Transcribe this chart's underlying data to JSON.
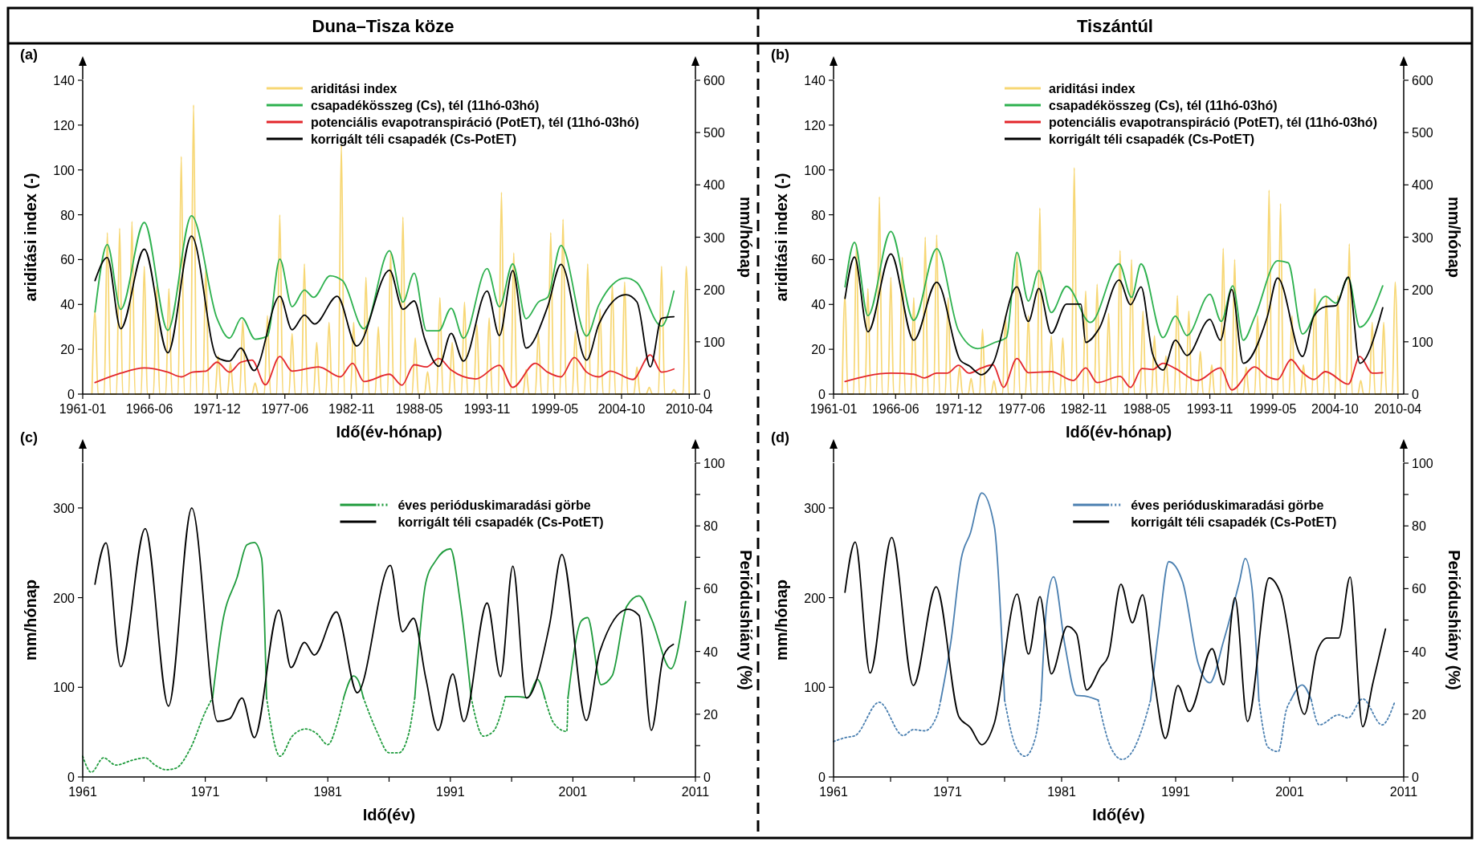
{
  "chart_data": [
    {
      "type": "line",
      "title": "Duna–Tisza köze",
      "annotations": [
        "(a)"
      ],
      "xlabel": "Idő(év-hónap)",
      "ylabel": "ariditási index (-)",
      "y2label": "mm/hónap",
      "legend": "top",
      "xlim": [
        "1961-01",
        "2010-10"
      ],
      "xticks": [
        "1961-01",
        "1966-06",
        "1971-12",
        "1977-06",
        "1982-11",
        "1988-05",
        "1993-11",
        "1999-05",
        "2004-10",
        "2010-04"
      ],
      "ylim": [
        0,
        140
      ],
      "yticks": [
        0,
        20,
        40,
        60,
        80,
        100,
        120,
        140
      ],
      "y2lim": [
        0,
        600
      ],
      "y2ticks": [
        0,
        100,
        200,
        300,
        400,
        500,
        600
      ],
      "series": [
        {
          "name": "ariditási index",
          "color": "#f7d774",
          "axis": "y",
          "x": [
            "1961-10",
            "1962-01",
            "1962-04",
            "1962-10",
            "1963-01",
            "1963-04",
            "1963-10",
            "1964-01",
            "1964-04",
            "1964-10",
            "1965-01",
            "1965-04",
            "1965-10",
            "1966-01",
            "1966-04",
            "1966-10",
            "1967-01",
            "1967-04",
            "1967-10",
            "1968-01",
            "1968-04",
            "1968-10",
            "1969-01",
            "1969-04",
            "1969-10",
            "1970-01",
            "1970-04",
            "1970-10",
            "1971-01",
            "1971-04",
            "1971-10",
            "1972-01",
            "1972-04",
            "1972-10",
            "1973-01",
            "1973-04",
            "1973-10",
            "1974-01",
            "1974-04",
            "1974-10",
            "1975-01",
            "1975-04",
            "1975-10",
            "1976-01",
            "1976-04",
            "1976-10",
            "1977-01",
            "1977-04",
            "1977-10",
            "1978-01",
            "1978-04",
            "1978-10",
            "1979-01",
            "1979-04",
            "1979-10",
            "1980-01",
            "1980-04",
            "1980-10",
            "1981-01",
            "1981-04",
            "1981-10",
            "1982-01",
            "1982-04",
            "1982-10",
            "1983-01",
            "1983-04",
            "1983-10",
            "1984-01",
            "1984-04",
            "1984-10",
            "1985-01",
            "1985-04",
            "1985-10",
            "1986-01",
            "1986-04",
            "1986-10",
            "1987-01",
            "1987-04",
            "1987-10",
            "1988-01",
            "1988-04",
            "1988-10",
            "1989-01",
            "1989-04",
            "1989-10",
            "1990-01",
            "1990-04",
            "1990-10",
            "1991-01",
            "1991-04",
            "1991-10",
            "1992-01",
            "1992-04",
            "1992-10",
            "1993-01",
            "1993-04",
            "1993-10",
            "1994-01",
            "1994-04",
            "1994-10",
            "1995-01",
            "1995-04",
            "1995-10",
            "1996-01",
            "1996-04",
            "1996-10",
            "1997-01",
            "1997-04",
            "1997-10",
            "1998-01",
            "1998-04",
            "1998-10",
            "1999-01",
            "1999-04",
            "1999-10",
            "2000-01",
            "2000-04",
            "2000-10",
            "2001-01",
            "2001-04",
            "2001-10",
            "2002-01",
            "2002-04",
            "2002-10",
            "2003-01",
            "2003-04",
            "2003-10",
            "2004-01",
            "2004-04",
            "2004-10",
            "2005-01",
            "2005-04",
            "2005-10",
            "2006-01",
            "2006-04",
            "2006-10",
            "2007-01",
            "2007-04",
            "2007-10",
            "2008-01",
            "2008-04",
            "2008-10",
            "2009-01",
            "2009-04",
            "2009-10",
            "2010-01",
            "2010-04"
          ],
          "values": [
            0,
            37,
            0,
            0,
            72,
            0,
            0,
            74,
            0,
            0,
            77,
            0,
            0,
            57,
            0,
            0,
            48,
            0,
            0,
            47,
            0,
            0,
            106,
            0,
            0,
            129,
            0,
            0,
            57,
            0,
            0,
            17,
            0,
            0,
            14,
            0,
            0,
            33,
            0,
            0,
            5,
            0,
            0,
            35,
            0,
            0,
            80,
            0,
            0,
            27,
            0,
            0,
            58,
            0,
            0,
            23,
            0,
            0,
            32,
            0,
            0,
            111,
            0,
            0,
            32,
            0,
            0,
            52,
            0,
            0,
            30,
            0,
            0,
            63,
            0,
            0,
            79,
            0,
            0,
            25,
            0,
            0,
            10,
            0,
            0,
            43,
            0,
            0,
            23,
            0,
            0,
            41,
            0,
            0,
            31,
            0,
            0,
            34,
            0,
            0,
            90,
            0,
            0,
            63,
            0,
            0,
            11,
            0,
            0,
            27,
            0,
            0,
            72,
            0,
            0,
            78,
            0,
            0,
            28,
            0,
            0,
            58,
            0,
            0,
            38,
            0,
            0,
            49,
            0,
            0,
            50,
            0,
            0,
            12,
            0,
            0,
            3,
            0,
            0,
            57,
            0,
            0,
            2,
            0,
            0,
            57,
            0
          ]
        },
        {
          "name": "csapadékösszeg (Cs), tél (11hó-03hó)",
          "color": "#2db14e",
          "axis": "y2",
          "x": [
            "1962-01",
            "1963-01",
            "1964-02",
            "1966-01",
            "1967-12",
            "1969-11",
            "1971-12",
            "1972-12",
            "1973-12",
            "1975-01",
            "1976-01",
            "1977-01",
            "1978-01",
            "1979-01",
            "1979-10",
            "1981-02",
            "1982-02",
            "1983-11",
            "1985-12",
            "1987-01",
            "1987-12",
            "1988-12",
            "1989-12",
            "1990-12",
            "1991-12",
            "1993-11",
            "1994-11",
            "1995-12",
            "1997-01",
            "1998-01",
            "1998-10",
            "1999-11",
            "2001-12",
            "2002-12",
            "2005-02",
            "2006-01",
            "2008-01",
            "2009-01"
          ],
          "values": [
            157,
            286,
            162,
            328,
            122,
            341,
            144,
            107,
            146,
            105,
            111,
            258,
            167,
            199,
            185,
            226,
            217,
            125,
            274,
            176,
            231,
            121,
            121,
            164,
            107,
            240,
            167,
            249,
            144,
            176,
            185,
            284,
            111,
            171,
            222,
            213,
            130,
            197
          ]
        },
        {
          "name": "potenciális evapotranspiráció (PotET), tél (11hó-03hó)",
          "color": "#e3262b",
          "axis": "y2",
          "x": [
            "1962-01",
            "1964-02",
            "1966-01",
            "1967-12",
            "1969-01",
            "1969-12",
            "1971-01",
            "1971-12",
            "1972-12",
            "1973-11",
            "1974-10",
            "1975-11",
            "1977-01",
            "1978-01",
            "1980-03",
            "1981-12",
            "1982-12",
            "1983-11",
            "1985-12",
            "1986-12",
            "1987-12",
            "1988-12",
            "1989-12",
            "1990-12",
            "1992-12",
            "1994-11",
            "1995-12",
            "1997-10",
            "1998-10",
            "1999-11",
            "2000-12",
            "2001-12",
            "2002-12",
            "2003-11",
            "2005-09",
            "2007-02",
            "2008-01",
            "2009-01"
          ],
          "values": [
            22,
            40,
            50,
            42,
            33,
            42,
            44,
            61,
            42,
            61,
            65,
            18,
            72,
            44,
            52,
            33,
            59,
            24,
            38,
            17,
            56,
            52,
            68,
            46,
            29,
            55,
            13,
            59,
            42,
            33,
            70,
            42,
            33,
            44,
            28,
            75,
            42,
            48
          ]
        },
        {
          "name": "korrigált téli csapadék (Cs-PotET)",
          "color": "#000000",
          "axis": "y2",
          "x": [
            "1962-01",
            "1963-01",
            "1964-02",
            "1966-01",
            "1967-12",
            "1969-11",
            "1971-12",
            "1972-12",
            "1973-11",
            "1974-12",
            "1977-01",
            "1978-01",
            "1979-01",
            "1979-11",
            "1981-09",
            "1983-04",
            "1985-12",
            "1987-01",
            "1987-12",
            "1988-10",
            "1989-12",
            "1990-12",
            "1991-12",
            "1993-11",
            "1994-11",
            "1995-12",
            "1997-01",
            "1998-10",
            "1999-11",
            "2001-12",
            "2002-12",
            "2005-02",
            "2006-01",
            "2007-02",
            "2008-01",
            "2009-01"
          ],
          "values": [
            217,
            261,
            125,
            277,
            79,
            302,
            70,
            63,
            88,
            45,
            187,
            123,
            151,
            134,
            187,
            92,
            237,
            162,
            178,
            107,
            53,
            116,
            63,
            197,
            112,
            236,
            88,
            167,
            248,
            65,
            134,
            190,
            176,
            52,
            145,
            148
          ]
        }
      ]
    },
    {
      "type": "line",
      "title": "Tiszántúl",
      "annotations": [
        "(b)"
      ],
      "xlabel": "Idő(év-hónap)",
      "ylabel": "ariditási index (-)",
      "y2label": "mm/hónap",
      "legend": "top",
      "xlim": [
        "1961-01",
        "2010-10"
      ],
      "xticks": [
        "1961-01",
        "1966-06",
        "1971-12",
        "1977-06",
        "1982-11",
        "1988-05",
        "1993-11",
        "1999-05",
        "2004-10",
        "2010-04"
      ],
      "ylim": [
        0,
        140
      ],
      "yticks": [
        0,
        20,
        40,
        60,
        80,
        100,
        120,
        140
      ],
      "y2lim": [
        0,
        600
      ],
      "y2ticks": [
        0,
        100,
        200,
        300,
        400,
        500,
        600
      ],
      "series": [
        {
          "name": "ariditási index",
          "color": "#f7d774",
          "axis": "y",
          "x": [
            "1961-10",
            "1962-01",
            "1962-04",
            "1962-10",
            "1963-01",
            "1963-04",
            "1963-10",
            "1964-01",
            "1964-04",
            "1964-10",
            "1965-01",
            "1965-04",
            "1965-10",
            "1966-01",
            "1966-04",
            "1966-10",
            "1967-01",
            "1967-04",
            "1967-10",
            "1968-01",
            "1968-04",
            "1968-10",
            "1969-01",
            "1969-04",
            "1969-10",
            "1970-01",
            "1970-04",
            "1970-10",
            "1971-01",
            "1971-04",
            "1971-10",
            "1972-01",
            "1972-04",
            "1972-10",
            "1973-01",
            "1973-04",
            "1973-10",
            "1974-01",
            "1974-04",
            "1974-10",
            "1975-01",
            "1975-04",
            "1975-10",
            "1976-01",
            "1976-04",
            "1976-10",
            "1977-01",
            "1977-04",
            "1977-10",
            "1978-01",
            "1978-04",
            "1978-10",
            "1979-01",
            "1979-04",
            "1979-10",
            "1980-01",
            "1980-04",
            "1980-10",
            "1981-01",
            "1981-04",
            "1981-10",
            "1982-01",
            "1982-04",
            "1982-10",
            "1983-01",
            "1983-04",
            "1983-10",
            "1984-01",
            "1984-04",
            "1984-10",
            "1985-01",
            "1985-04",
            "1985-10",
            "1986-01",
            "1986-04",
            "1986-10",
            "1987-01",
            "1987-04",
            "1987-10",
            "1988-01",
            "1988-04",
            "1988-10",
            "1989-01",
            "1989-04",
            "1989-10",
            "1990-01",
            "1990-04",
            "1990-10",
            "1991-01",
            "1991-04",
            "1991-10",
            "1992-01",
            "1992-04",
            "1992-10",
            "1993-01",
            "1993-04",
            "1993-10",
            "1994-01",
            "1994-04",
            "1994-10",
            "1995-01",
            "1995-04",
            "1995-10",
            "1996-01",
            "1996-04",
            "1996-10",
            "1997-01",
            "1997-04",
            "1997-10",
            "1998-01",
            "1998-04",
            "1998-10",
            "1999-01",
            "1999-04",
            "1999-10",
            "2000-01",
            "2000-04",
            "2000-10",
            "2001-01",
            "2001-04",
            "2001-10",
            "2002-01",
            "2002-04",
            "2002-10",
            "2003-01",
            "2003-04",
            "2003-10",
            "2004-01",
            "2004-04",
            "2004-10",
            "2005-01",
            "2005-04",
            "2005-10",
            "2006-01",
            "2006-04",
            "2006-10",
            "2007-01",
            "2007-04",
            "2007-10",
            "2008-01",
            "2008-04",
            "2008-10",
            "2009-01",
            "2009-04",
            "2009-10",
            "2010-01",
            "2010-04"
          ],
          "values": [
            0,
            44,
            0,
            0,
            67,
            0,
            0,
            47,
            0,
            0,
            88,
            0,
            0,
            52,
            0,
            0,
            61,
            0,
            0,
            43,
            0,
            0,
            70,
            0,
            0,
            71,
            0,
            0,
            43,
            0,
            0,
            12,
            0,
            0,
            7,
            0,
            0,
            29,
            0,
            0,
            6,
            0,
            0,
            35,
            0,
            0,
            63,
            0,
            0,
            35,
            0,
            0,
            83,
            0,
            0,
            26,
            0,
            0,
            25,
            0,
            0,
            101,
            0,
            0,
            46,
            0,
            0,
            49,
            0,
            0,
            36,
            0,
            0,
            64,
            0,
            0,
            60,
            0,
            0,
            37,
            0,
            0,
            26,
            0,
            0,
            17,
            0,
            0,
            44,
            0,
            0,
            37,
            0,
            0,
            19,
            0,
            0,
            13,
            0,
            0,
            65,
            0,
            0,
            60,
            0,
            0,
            12,
            0,
            0,
            35,
            0,
            0,
            91,
            0,
            0,
            85,
            0,
            0,
            35,
            0,
            0,
            13,
            0,
            0,
            47,
            0,
            0,
            44,
            0,
            0,
            44,
            0,
            0,
            67,
            0,
            0,
            6,
            0,
            0,
            32,
            0,
            0,
            32,
            0,
            0,
            50,
            0
          ]
        },
        {
          "name": "csapadékösszeg (Cs), tél (11hó-03hó)",
          "color": "#2db14e",
          "axis": "y2",
          "x": [
            "1962-01",
            "1962-11",
            "1964-01",
            "1966-01",
            "1968-01",
            "1970-01",
            "1971-12",
            "1973-08",
            "1975-02",
            "1976-02",
            "1977-01",
            "1978-01",
            "1978-12",
            "1980-01",
            "1981-05",
            "1983-06",
            "1985-12",
            "1987-01",
            "1987-11",
            "1989-10",
            "1990-11",
            "1991-11",
            "1993-11",
            "1994-11",
            "1995-11",
            "1996-10",
            "1997-10",
            "1999-10",
            "2000-09",
            "2001-12",
            "2003-12",
            "2004-11",
            "2005-12",
            "2006-12",
            "2008-12"
          ],
          "values": [
            205,
            290,
            150,
            311,
            141,
            278,
            121,
            87,
            99,
            108,
            271,
            178,
            236,
            156,
            206,
            137,
            249,
            185,
            249,
            108,
            149,
            112,
            191,
            139,
            207,
            103,
            147,
            255,
            251,
            115,
            187,
            174,
            222,
            128,
            207
          ]
        },
        {
          "name": "potenciális evapotranspiráció (PotET), tél (11hó-03hó)",
          "color": "#e3262b",
          "axis": "y2",
          "x": [
            "1962-01",
            "1966-01",
            "1968-01",
            "1968-12",
            "1970-01",
            "1970-12",
            "1971-12",
            "1972-11",
            "1973-12",
            "1974-12",
            "1975-11",
            "1977-01",
            "1978-01",
            "1980-01",
            "1981-12",
            "1983-01",
            "1984-01",
            "1986-01",
            "1986-12",
            "1987-12",
            "1988-11",
            "1989-10",
            "1990-11",
            "1992-10",
            "1994-10",
            "1995-10",
            "1997-10",
            "1998-11",
            "1999-10",
            "2000-12",
            "2001-11",
            "2002-12",
            "2003-12",
            "2005-12",
            "2006-12",
            "2008-01",
            "2008-12"
          ],
          "values": [
            24,
            40,
            38,
            31,
            40,
            40,
            55,
            40,
            50,
            56,
            13,
            68,
            41,
            43,
            26,
            50,
            22,
            34,
            13,
            49,
            47,
            59,
            49,
            26,
            50,
            8,
            52,
            34,
            28,
            66,
            43,
            28,
            43,
            19,
            72,
            40,
            41
          ]
        },
        {
          "name": "korrigált téli csapadék (Cs-PotET)",
          "color": "#000000",
          "axis": "y2",
          "x": [
            "1962-01",
            "1962-11",
            "1964-01",
            "1966-01",
            "1968-01",
            "1970-01",
            "1972-02",
            "1972-11",
            "1973-12",
            "1974-12",
            "1977-01",
            "1978-01",
            "1978-12",
            "1980-01",
            "1981-05",
            "1982-08",
            "1983-01",
            "1984-03",
            "1985-12",
            "1986-12",
            "1987-11",
            "1988-11",
            "1989-10",
            "1990-11",
            "1991-11",
            "1993-11",
            "1994-10",
            "1995-10",
            "1996-10",
            "1998-11",
            "1999-10",
            "2001-12",
            "2002-12",
            "2003-12",
            "2004-11",
            "2005-12",
            "2006-12",
            "2008-12"
          ],
          "values": [
            183,
            262,
            119,
            268,
            103,
            214,
            64,
            54,
            37,
            59,
            205,
            139,
            202,
            116,
            172,
            172,
            99,
            125,
            218,
            171,
            205,
            77,
            46,
            103,
            74,
            143,
            103,
            200,
            59,
            147,
            222,
            72,
            149,
            167,
            169,
            224,
            59,
            165
          ]
        }
      ]
    },
    {
      "type": "line",
      "annotations": [
        "(c)"
      ],
      "xlabel": "Idő(év)",
      "ylabel": "mm/hónap",
      "y2label": "Periódushiány (%)",
      "legend": "top right",
      "xlim": [
        1961,
        2011
      ],
      "xticks": [
        1961,
        {
          "value": 1966,
          "label": null
        },
        1971,
        {
          "value": 1976,
          "label": null
        },
        1981,
        {
          "value": 1986,
          "label": null
        },
        1991,
        {
          "value": 1996,
          "label": null
        },
        2001,
        {
          "value": 2006,
          "label": null
        },
        2011
      ],
      "ylim": [
        0,
        350
      ],
      "yticks": [
        0,
        100,
        200,
        300
      ],
      "y2lim": [
        0,
        100
      ],
      "y2ticks": [
        0,
        {
          "value": 10,
          "label": null
        },
        20,
        {
          "value": 30,
          "label": null
        },
        40,
        {
          "value": 50,
          "label": null
        },
        60,
        {
          "value": 70,
          "label": null
        },
        80,
        {
          "value": 90,
          "label": null
        },
        100
      ],
      "series": [
        {
          "name": "éves perióduskimaradási görbe",
          "color": "#1e9b3c",
          "axis": "y2",
          "line_style": "solid",
          "x": [
            1971.6,
            1972.4,
            1973.6,
            1974.4,
            1975.0,
            1975.6,
            1976.0,
            1976.5,
            1982.3,
            1983.1,
            1983.5,
            1983.9,
            1984.5,
            1988.1,
            1989.0,
            1989.8,
            1991.0,
            1991.8,
            1992.7,
            1993.0,
            1995.5,
            1996.5,
            1997.3,
            1998.1,
            1998.7,
            1999.0,
            2000.6,
            2001.7,
            2002.2,
            2003.3,
            2004.2,
            2005.4,
            2006.4,
            2007.4,
            2009.0,
            2010.2
          ],
          "values": [
            25.3,
            49,
            63.6,
            74,
            74.7,
            69.7,
            25.3,
            null,
            25.3,
            32.2,
            30.6,
            25.3,
            null,
            25.3,
            62,
            68.9,
            72.7,
            55.9,
            25.3,
            null,
            25.6,
            25.6,
            25.3,
            31.1,
            25.3,
            null,
            25.3,
            49.8,
            50.8,
            29.4,
            32.2,
            54.4,
            57.7,
            50.5,
            34.5,
            55.9
          ]
        },
        {
          "color": "#1e9b3c",
          "axis": "y2",
          "line_style": "dotted",
          "x": [
            1961.0,
            1961.7,
            1962.7,
            1963.7,
            1965.1,
            1966.1,
            1966.9,
            1967.8,
            1968.6,
            1969.8,
            1971.0,
            1971.6,
            1974.0,
            1976.0,
            1977.1,
            1978.1,
            1979.2,
            1980.1,
            1981.0,
            1981.8,
            1982.3,
            1983.0,
            1983.9,
            1985.0,
            1986.0,
            1986.8,
            1987.6,
            1988.1,
            1990.0,
            1992.7,
            1993.7,
            1994.5,
            1995.5,
            1997.0,
            1998.7,
            1999.5,
            2000.5,
            2000.6
          ],
          "values": [
            6.6,
            1.5,
            6.1,
            3.8,
            5.4,
            6.1,
            3.8,
            2.3,
            2.8,
            9.2,
            20.7,
            25.3,
            null,
            25.3,
            6.6,
            13,
            15.3,
            13.8,
            10.3,
            17.6,
            25.3,
            null,
            25.3,
            14.5,
            7.7,
            7.7,
            13.8,
            25.3,
            null,
            25.3,
            13,
            14.5,
            25.6,
            null,
            25.3,
            16.8,
            14.5,
            25.3
          ]
        },
        {
          "name": "korrigált téli csapadék (Cs-PotET)",
          "color": "#000000",
          "axis": "y",
          "line_style": "solid",
          "x": [
            1962.0,
            1962.9,
            1964.1,
            1966.1,
            1968.0,
            1969.9,
            1972.0,
            1973.0,
            1974.0,
            1975.0,
            1977.0,
            1978.0,
            1979.1,
            1979.9,
            1981.7,
            1983.4,
            1986.1,
            1987.1,
            1988.0,
            1989.0,
            1990.0,
            1991.2,
            1992.1,
            1994.0,
            1995.1,
            1996.1,
            1997.2,
            1999.1,
            2000.1,
            2002.1,
            2003.2,
            2005.5,
            2006.4,
            2007.4,
            2008.4,
            2009.2
          ],
          "values": [
            215,
            261,
            123,
            277,
            79,
            300,
            62,
            65,
            88,
            44,
            186,
            122,
            150,
            136,
            184,
            94,
            236,
            162,
            177,
            110,
            52,
            115,
            62,
            194,
            112,
            235,
            88,
            170,
            248,
            63,
            140,
            187,
            180,
            52,
            135,
            148
          ]
        }
      ]
    },
    {
      "type": "line",
      "annotations": [
        "(d)"
      ],
      "xlabel": "Idő(év)",
      "ylabel": "mm/hónap",
      "y2label": "Periódushiány (%)",
      "legend": "top right",
      "xlim": [
        1961,
        2011
      ],
      "xticks": [
        1961,
        {
          "value": 1966,
          "label": null
        },
        1971,
        {
          "value": 1976,
          "label": null
        },
        1981,
        {
          "value": 1986,
          "label": null
        },
        1991,
        {
          "value": 1996,
          "label": null
        },
        2001,
        {
          "value": 2006,
          "label": null
        },
        2011
      ],
      "ylim": [
        0,
        350
      ],
      "yticks": [
        0,
        100,
        200,
        300
      ],
      "y2lim": [
        0,
        100
      ],
      "y2ticks": [
        0,
        {
          "value": 10,
          "label": null
        },
        20,
        {
          "value": 30,
          "label": null
        },
        40,
        {
          "value": 50,
          "label": null
        },
        60,
        {
          "value": 70,
          "label": null
        },
        80,
        {
          "value": 90,
          "label": null
        },
        100
      ],
      "series": [
        {
          "name": "éves perióduskimaradási görbe",
          "color": "#4a7fb0",
          "axis": "y2",
          "line_style": "solid",
          "x": [
            1970.4,
            1971.3,
            1972.2,
            1973.0,
            1974.0,
            1975.1,
            1976.0,
            1977.0,
            1979.2,
            1979.7,
            1980.3,
            1981.3,
            1982.3,
            1983.2,
            1984.2,
            1986.0,
            1988.8,
            1989.5,
            1990.4,
            1991.6,
            1993.0,
            1994.0,
            1995.2,
            1996.6,
            1997.1,
            1997.7,
            1998.3,
            1999.0,
            2001.1,
            2002.1,
            2002.9
          ],
          "values": [
            24.5,
            43.3,
            69.6,
            77.7,
            90.5,
            79.9,
            24.5,
            null,
            24.5,
            55,
            63.8,
            41.8,
            26,
            25.7,
            24.5,
            null,
            24.5,
            46.2,
            68.6,
            62.3,
            35.9,
            30,
            43.3,
            62.3,
            69.6,
            60.1,
            24.5,
            null,
            24.5,
            29.3,
            24.5
          ]
        },
        {
          "color": "#4a7fb0",
          "axis": "y2",
          "line_style": "dotted",
          "x": [
            1961.0,
            1962.0,
            1962.9,
            1965.0,
            1967.1,
            1968.0,
            1969.0,
            1970.1,
            1970.4,
            1973.0,
            1976.0,
            1977.0,
            1977.8,
            1978.7,
            1979.2,
            1982.0,
            1984.2,
            1985.3,
            1986.3,
            1987.2,
            1988.2,
            1988.8,
            1993.0,
            1998.3,
            1999.1,
            2000.0,
            2000.7,
            2001.1,
            2002.0,
            2002.9,
            2003.6,
            2005.3,
            2006.1,
            2007.4,
            2009.1,
            2010.2
          ],
          "values": [
            11.3,
            12.5,
            13.2,
            23.8,
            13.2,
            15.1,
            14.7,
            19.8,
            24.5,
            null,
            24.5,
            9.5,
            6.6,
            12.5,
            24.5,
            null,
            24.5,
            9.5,
            5.6,
            8.1,
            16.9,
            24.5,
            null,
            24.5,
            9.5,
            8.1,
            21.3,
            24.5,
            null,
            24.5,
            16.6,
            19.8,
            18.8,
            24.9,
            16.6,
            23.8
          ]
        },
        {
          "name": "korrigált téli csapadék (Cs-PotET)",
          "color": "#000000",
          "axis": "y",
          "line_style": "solid",
          "x": [
            1962.0,
            1962.9,
            1964.2,
            1966.1,
            1968.0,
            1970.0,
            1972.0,
            1973.0,
            1974.0,
            1975.1,
            1977.1,
            1978.1,
            1979.1,
            1980.1,
            1981.5,
            1982.3,
            1983.2,
            1984.4,
            1985.1,
            1986.2,
            1987.2,
            1988.1,
            1989.1,
            1990.1,
            1991.2,
            1992.2,
            1994.2,
            1995.2,
            1996.2,
            1997.3,
            1999.2,
            2000.2,
            2002.3,
            2003.4,
            2004.3,
            2005.3,
            2006.3,
            2007.4,
            2008.3,
            2009.4
          ],
          "values": [
            206,
            262,
            116,
            267,
            102,
            212,
            67,
            55,
            36,
            60,
            204,
            137,
            201,
            115,
            168,
            160,
            97,
            122,
            135,
            215,
            172,
            203,
            110,
            43,
            102,
            73,
            143,
            103,
            200,
            62,
            222,
            205,
            70,
            140,
            155,
            155,
            223,
            56,
            105,
            165
          ]
        }
      ]
    }
  ]
}
